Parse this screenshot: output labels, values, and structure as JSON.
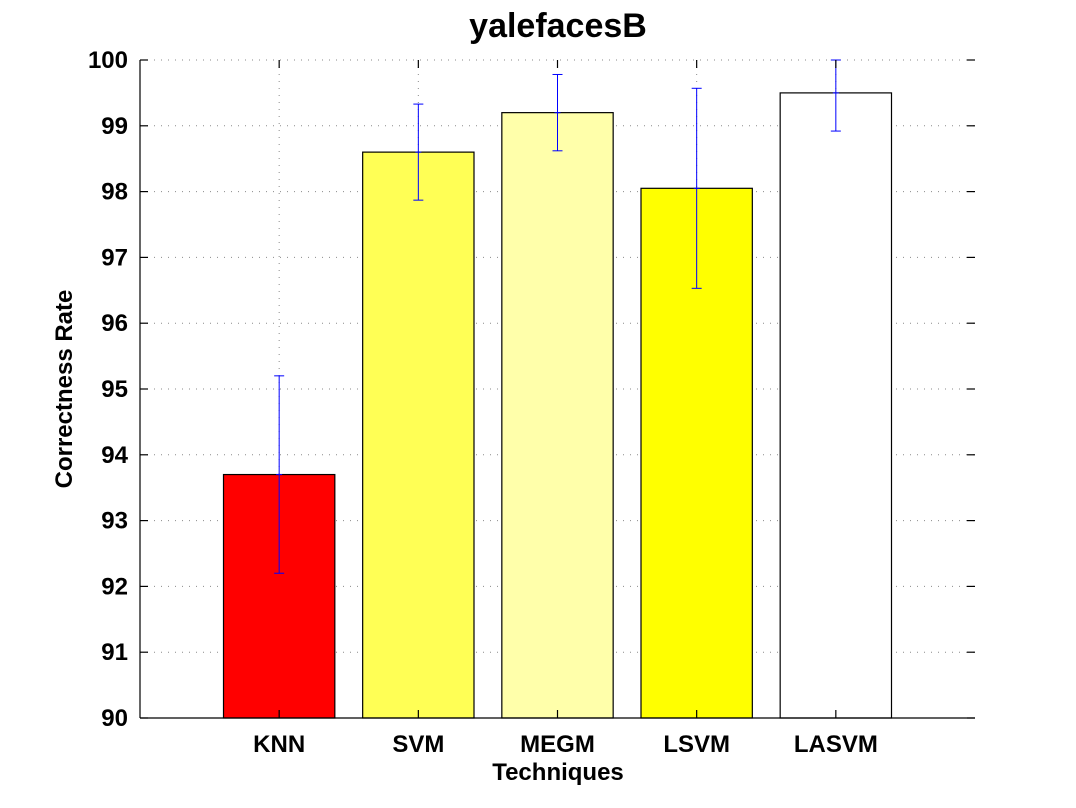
{
  "chart_data": {
    "type": "bar",
    "title": "yalefacesB",
    "xlabel": "Techniques",
    "ylabel": "Correctness Rate",
    "categories": [
      "KNN",
      "SVM",
      "MEGM",
      "LSVM",
      "LASVM"
    ],
    "values": [
      93.7,
      98.6,
      99.2,
      98.05,
      99.5
    ],
    "error_low": [
      92.2,
      97.87,
      98.62,
      96.53,
      98.92
    ],
    "error_high": [
      95.2,
      99.33,
      99.78,
      99.57,
      100.0
    ],
    "bar_colors": [
      "#ff0000",
      "#ffff55",
      "#ffffaa",
      "#ffff00",
      "#ffffff"
    ],
    "error_color": "#0000ff",
    "ylim": [
      90,
      100
    ],
    "yticks": [
      90,
      91,
      92,
      93,
      94,
      95,
      96,
      97,
      98,
      99,
      100
    ],
    "grid": true
  }
}
